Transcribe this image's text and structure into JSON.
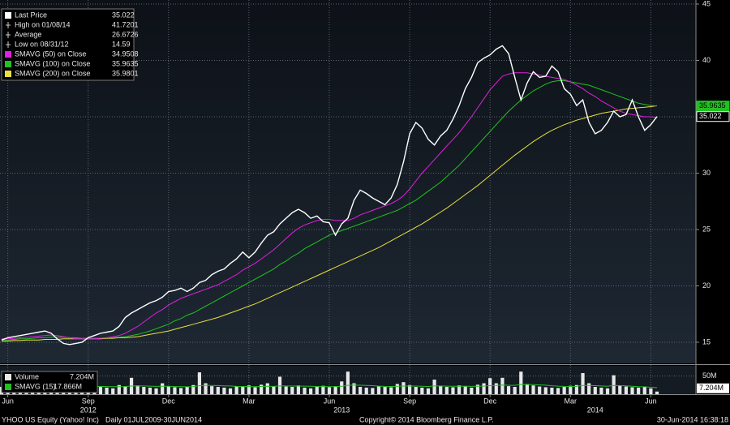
{
  "chart_data": [
    {
      "type": "line",
      "categories": [
        null,
        "Jun",
        null,
        null,
        null,
        null,
        null,
        null,
        null,
        null,
        null,
        null,
        null,
        null,
        "Sep",
        null,
        null,
        null,
        null,
        null,
        null,
        null,
        null,
        null,
        null,
        null,
        null,
        "Dec",
        null,
        null,
        null,
        null,
        null,
        null,
        null,
        null,
        null,
        null,
        null,
        null,
        "Mar",
        null,
        null,
        null,
        null,
        null,
        null,
        null,
        null,
        null,
        null,
        null,
        null,
        "Jun",
        null,
        null,
        null,
        null,
        null,
        null,
        null,
        null,
        null,
        null,
        null,
        null,
        "Sep",
        null,
        null,
        null,
        null,
        null,
        null,
        null,
        null,
        null,
        null,
        null,
        null,
        "Dec",
        null,
        null,
        null,
        null,
        null,
        null,
        null,
        null,
        null,
        null,
        null,
        null,
        "Mar",
        null,
        null,
        null,
        null,
        null,
        null,
        null,
        null,
        null,
        null,
        null,
        null,
        "Jun",
        null
      ],
      "category_years": [
        null,
        null,
        null,
        null,
        null,
        null,
        null,
        null,
        null,
        null,
        null,
        null,
        null,
        null,
        "2012",
        null,
        null,
        null,
        null,
        null,
        null,
        null,
        null,
        null,
        null,
        null,
        null,
        null,
        null,
        null,
        null,
        null,
        null,
        null,
        null,
        null,
        null,
        null,
        null,
        null,
        null,
        null,
        null,
        null,
        null,
        null,
        null,
        null,
        null,
        null,
        null,
        null,
        null,
        null,
        null,
        "2013",
        null,
        null,
        null,
        null,
        null,
        null,
        null,
        null,
        null,
        null,
        null,
        null,
        null,
        null,
        null,
        null,
        null,
        null,
        null,
        null,
        null,
        null,
        null,
        null,
        null,
        null,
        null,
        null,
        null,
        null,
        null,
        null,
        null,
        null,
        null,
        null,
        null,
        null,
        null,
        null,
        "2014",
        null,
        null,
        null,
        null,
        null,
        null,
        null,
        null,
        null,
        null
      ],
      "series": [
        {
          "name": "Last Price",
          "color": "#ffffff",
          "values": [
            15.2,
            15.4,
            15.5,
            15.6,
            15.7,
            15.8,
            15.9,
            16.0,
            15.8,
            15.3,
            14.9,
            14.8,
            14.9,
            15.0,
            15.4,
            15.6,
            15.8,
            15.9,
            16.0,
            16.4,
            17.2,
            17.6,
            17.9,
            18.2,
            18.5,
            18.7,
            19.0,
            19.5,
            19.6,
            19.8,
            19.5,
            19.8,
            20.3,
            20.5,
            21.0,
            21.3,
            21.5,
            22.0,
            22.4,
            23.0,
            22.5,
            23.0,
            23.8,
            24.5,
            24.8,
            25.5,
            26.0,
            26.5,
            26.8,
            26.5,
            26.0,
            26.2,
            25.7,
            25.6,
            24.5,
            25.5,
            26.0,
            27.6,
            28.5,
            28.2,
            27.8,
            27.5,
            27.2,
            27.8,
            29.0,
            31.0,
            33.5,
            34.5,
            34.0,
            33.0,
            32.5,
            33.3,
            33.8,
            34.8,
            36.0,
            37.5,
            38.5,
            39.8,
            40.2,
            40.5,
            41.0,
            41.3,
            40.6,
            38.5,
            36.5,
            38.0,
            39.0,
            38.5,
            38.6,
            39.5,
            39.0,
            37.5,
            37.0,
            36.0,
            36.5,
            34.5,
            33.5,
            33.8,
            34.5,
            35.5,
            35.0,
            35.2,
            36.5,
            35.0,
            33.8,
            34.3,
            35.022
          ],
          "flag": true
        },
        {
          "name": "SMAVG (50) on Close",
          "color": "#e020e0",
          "values": [
            15.3,
            15.3,
            15.35,
            15.4,
            15.45,
            15.5,
            15.55,
            15.6,
            15.65,
            15.6,
            15.5,
            15.4,
            15.3,
            15.3,
            15.3,
            15.3,
            15.35,
            15.4,
            15.5,
            15.6,
            15.8,
            16.1,
            16.4,
            16.8,
            17.2,
            17.6,
            17.9,
            18.3,
            18.6,
            18.9,
            19.1,
            19.3,
            19.5,
            19.7,
            19.9,
            20.1,
            20.4,
            20.7,
            21.0,
            21.4,
            21.7,
            22.0,
            22.4,
            22.8,
            23.2,
            23.7,
            24.2,
            24.7,
            25.1,
            25.4,
            25.6,
            25.8,
            25.9,
            25.9,
            25.8,
            25.8,
            25.8,
            26.0,
            26.3,
            26.5,
            26.7,
            26.9,
            27.1,
            27.3,
            27.6,
            28.0,
            28.6,
            29.3,
            30.0,
            30.6,
            31.2,
            31.8,
            32.4,
            33.0,
            33.6,
            34.3,
            35.0,
            35.8,
            36.6,
            37.4,
            38.0,
            38.6,
            38.8,
            38.9,
            38.9,
            38.9,
            38.8,
            38.7,
            38.6,
            38.5,
            38.4,
            38.3,
            38.1,
            37.8,
            37.5,
            37.1,
            36.8,
            36.4,
            36.1,
            35.8,
            35.5,
            35.3,
            35.2,
            35.1,
            35.0,
            35.0,
            34.9508
          ]
        },
        {
          "name": "SMAVG (100) on Close",
          "color": "#22c022",
          "values": [
            15.2,
            15.2,
            15.25,
            15.3,
            15.3,
            15.35,
            15.4,
            15.4,
            15.45,
            15.45,
            15.45,
            15.4,
            15.4,
            15.35,
            15.35,
            15.35,
            15.35,
            15.4,
            15.4,
            15.45,
            15.5,
            15.6,
            15.7,
            15.85,
            16.0,
            16.2,
            16.4,
            16.6,
            16.9,
            17.1,
            17.4,
            17.6,
            17.9,
            18.2,
            18.5,
            18.8,
            19.1,
            19.4,
            19.7,
            20.0,
            20.3,
            20.6,
            20.9,
            21.2,
            21.5,
            21.9,
            22.2,
            22.6,
            22.9,
            23.3,
            23.6,
            23.9,
            24.2,
            24.5,
            24.7,
            24.9,
            25.1,
            25.3,
            25.5,
            25.7,
            25.9,
            26.1,
            26.3,
            26.5,
            26.7,
            27.0,
            27.3,
            27.6,
            28.0,
            28.4,
            28.8,
            29.2,
            29.7,
            30.2,
            30.7,
            31.3,
            31.9,
            32.5,
            33.1,
            33.7,
            34.3,
            34.9,
            35.5,
            36.0,
            36.5,
            36.9,
            37.3,
            37.6,
            37.9,
            38.1,
            38.2,
            38.2,
            38.1,
            38.0,
            37.9,
            37.8,
            37.6,
            37.4,
            37.2,
            37.0,
            36.8,
            36.6,
            36.4,
            36.2,
            36.1,
            36.0,
            35.9635
          ],
          "flag": true
        },
        {
          "name": "SMAVG (200) on Close",
          "color": "#e8e040",
          "values": [
            15.1,
            15.1,
            15.15,
            15.15,
            15.2,
            15.2,
            15.2,
            15.25,
            15.25,
            15.25,
            15.3,
            15.3,
            15.3,
            15.3,
            15.3,
            15.3,
            15.3,
            15.35,
            15.35,
            15.4,
            15.4,
            15.45,
            15.5,
            15.6,
            15.7,
            15.8,
            15.9,
            16.0,
            16.15,
            16.3,
            16.45,
            16.6,
            16.75,
            16.9,
            17.05,
            17.2,
            17.4,
            17.6,
            17.8,
            18.0,
            18.2,
            18.4,
            18.65,
            18.9,
            19.15,
            19.4,
            19.65,
            19.9,
            20.15,
            20.4,
            20.65,
            20.9,
            21.15,
            21.4,
            21.65,
            21.9,
            22.15,
            22.4,
            22.65,
            22.9,
            23.15,
            23.4,
            23.7,
            24.0,
            24.3,
            24.6,
            24.9,
            25.2,
            25.5,
            25.85,
            26.2,
            26.55,
            26.9,
            27.3,
            27.7,
            28.1,
            28.5,
            28.9,
            29.35,
            29.8,
            30.25,
            30.7,
            31.15,
            31.6,
            32.0,
            32.4,
            32.8,
            33.15,
            33.5,
            33.8,
            34.05,
            34.3,
            34.5,
            34.7,
            34.85,
            35.0,
            35.15,
            35.3,
            35.4,
            35.5,
            35.6,
            35.7,
            35.75,
            35.8,
            35.85,
            35.9,
            35.9801
          ]
        }
      ],
      "stats": [
        {
          "label": "High on 01/08/14",
          "value": 41.7201
        },
        {
          "label": "Average",
          "value": 26.6726
        },
        {
          "label": "Low on 08/31/12",
          "value": 14.59
        }
      ],
      "ylim": [
        13.13,
        45.36
      ],
      "yticks": [
        15,
        20,
        25,
        30,
        35,
        40,
        45
      ],
      "grid": true,
      "legend": "top-left"
    },
    {
      "type": "bar",
      "series": [
        {
          "name": "Volume",
          "color": "#e8e8e8",
          "values": [
            20,
            18,
            22,
            17,
            15,
            16,
            25,
            14,
            12,
            30,
            18,
            20,
            15,
            14,
            22,
            40,
            20,
            18,
            16,
            25,
            22,
            45,
            24,
            20,
            18,
            16,
            30,
            22,
            19,
            17,
            20,
            25,
            60,
            30,
            22,
            20,
            18,
            16,
            22,
            20,
            24,
            19,
            26,
            30,
            22,
            48,
            21,
            20,
            24,
            18,
            16,
            20,
            23,
            19,
            22,
            35,
            62,
            30,
            20,
            18,
            17,
            22,
            20,
            19,
            28,
            33,
            25,
            20,
            18,
            16,
            40,
            22,
            20,
            19,
            24,
            21,
            18,
            26,
            30,
            44,
            30,
            45,
            22,
            20,
            62,
            28,
            24,
            21,
            19,
            18,
            17,
            20,
            23,
            25,
            58,
            30,
            20,
            18,
            16,
            52,
            24,
            21,
            19,
            18,
            20,
            16,
            7.204
          ],
          "value_labels": {
            "106": "7.204M"
          },
          "flag": true
        },
        {
          "name": "SMAVG (15)",
          "color": "#22c022",
          "type": "line",
          "values": [
            19,
            19,
            19.2,
            19.3,
            19,
            18.8,
            19.5,
            19.2,
            18.6,
            19.8,
            19.6,
            19.4,
            18.9,
            18.5,
            18.8,
            21,
            21.3,
            20.9,
            20.5,
            20.8,
            21,
            22.5,
            22.8,
            22.4,
            22,
            21.5,
            21.8,
            21.6,
            21,
            20.6,
            20.2,
            20.6,
            23.5,
            24.2,
            24,
            23.6,
            23,
            22.4,
            21.5,
            21.2,
            21,
            20.8,
            21.2,
            21.6,
            21.4,
            22.8,
            22.5,
            22.2,
            22.3,
            22,
            21.6,
            21.2,
            21,
            20.8,
            20.9,
            21.6,
            24.4,
            25,
            24.6,
            24,
            23.4,
            22,
            21.5,
            21.2,
            21.6,
            22.2,
            22.4,
            22.2,
            21.8,
            21.2,
            22.4,
            22.5,
            22,
            21.6,
            21.8,
            22,
            21.5,
            21.8,
            22.2,
            23.4,
            23.8,
            25,
            24.6,
            24.2,
            26.8,
            26.5,
            26,
            25.4,
            24.8,
            23.2,
            22,
            21.4,
            21.2,
            21.4,
            23.8,
            24,
            23.4,
            22.6,
            21.8,
            23.8,
            23.6,
            23,
            21.6,
            20.8,
            20.2,
            19,
            17.866
          ],
          "value_labels": {
            "106": "17.866M"
          }
        }
      ],
      "ylim": [
        0,
        78
      ],
      "yticks": [
        {
          "value": 50,
          "label": "50M"
        }
      ]
    }
  ],
  "footer": {
    "security": "YHOO US Equity (Yahoo! Inc)",
    "range": "Daily 01JUL2009-30JUN2014",
    "copyright": "Copyright© 2014 Bloomberg Finance L.P.",
    "timestamp": "30-Jun-2014 16:38:18"
  }
}
